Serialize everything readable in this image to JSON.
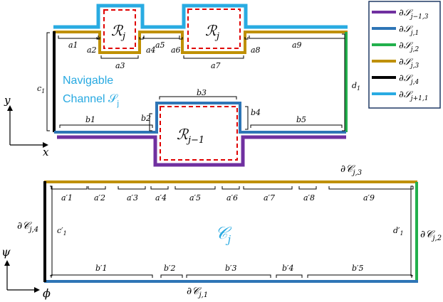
{
  "colors": {
    "purple": "#7030a0",
    "blue": "#2e75b6",
    "green": "#22b04c",
    "gold": "#bf9000",
    "black": "#000000",
    "cyan": "#29abe2",
    "red_dashed": "#e00000"
  },
  "top": {
    "channel_line1": "Navigable",
    "channel_line2": "Channel 𝒮",
    "channel_sub": "j",
    "region_upper_1": "ℛ",
    "region_upper_1_sub": "j",
    "region_upper_2": "ℛ",
    "region_upper_2_sub": "j",
    "region_lower": "ℛ",
    "region_lower_sub": "j−1",
    "a_labels": [
      "a1",
      "a2",
      "a3",
      "a4",
      "a5",
      "a6",
      "a7",
      "a8",
      "a9"
    ],
    "b_labels": [
      "b1",
      "b2",
      "b3",
      "b4",
      "b5"
    ],
    "c_label": "c",
    "c_sub": "1",
    "d_label": "d",
    "d_sub": "1",
    "axis_y": "y",
    "axis_x": "x"
  },
  "legend": {
    "items": [
      {
        "color": "purple",
        "label": "∂𝒮",
        "sub": "j−1,3"
      },
      {
        "color": "blue",
        "label": "∂𝒮",
        "sub": "j,1"
      },
      {
        "color": "green",
        "label": "∂𝒮",
        "sub": "j,2"
      },
      {
        "color": "gold",
        "label": "∂𝒮",
        "sub": "j,3"
      },
      {
        "color": "black",
        "label": "∂𝒮",
        "sub": "j,4"
      },
      {
        "color": "cyan",
        "label": "∂𝒮",
        "sub": "j+1,1"
      }
    ]
  },
  "bottom": {
    "region": "𝒞",
    "region_sub": "j",
    "top_boundary": "∂𝒞",
    "top_boundary_sub": "j,3",
    "right_boundary": "∂𝒞",
    "right_boundary_sub": "j,2",
    "left_boundary": "∂𝒞",
    "left_boundary_sub": "j,4",
    "bottom_boundary": "∂𝒞",
    "bottom_boundary_sub": "j,1",
    "a_primes": [
      "a′1",
      "a′2",
      "a′3",
      "a′4",
      "a′5",
      "a′6",
      "a′7",
      "a′8",
      "a′9"
    ],
    "b_primes": [
      "b′1",
      "b′2",
      "b′3",
      "b′4",
      "b′5"
    ],
    "c_prime": "c′",
    "c_prime_sub": "1",
    "d_prime": "d′",
    "d_prime_sub": "1",
    "axis_psi": "ψ",
    "axis_phi": "ϕ"
  }
}
